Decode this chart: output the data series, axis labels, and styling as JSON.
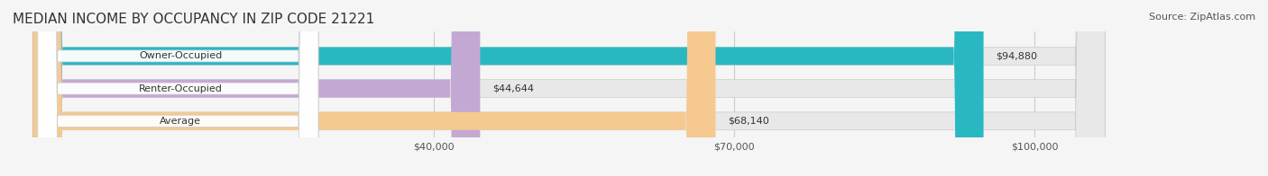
{
  "title": "MEDIAN INCOME BY OCCUPANCY IN ZIP CODE 21221",
  "source": "Source: ZipAtlas.com",
  "categories": [
    "Owner-Occupied",
    "Renter-Occupied",
    "Average"
  ],
  "values": [
    94880,
    44644,
    68140
  ],
  "labels": [
    "$94,880",
    "$44,644",
    "$68,140"
  ],
  "bar_colors": [
    "#29b8c2",
    "#c4a8d4",
    "#f5c990"
  ],
  "bar_edge_colors": [
    "#29b8c2",
    "#c4a8d4",
    "#f5c990"
  ],
  "xmax": 107000,
  "xticks": [
    40000,
    70000,
    100000
  ],
  "xticklabels": [
    "$40,000",
    "$70,000",
    "$100,000"
  ],
  "background_color": "#f5f5f5",
  "bar_background_color": "#e8e8e8",
  "title_fontsize": 11,
  "source_fontsize": 8,
  "label_fontsize": 8,
  "category_fontsize": 8,
  "tick_fontsize": 8
}
